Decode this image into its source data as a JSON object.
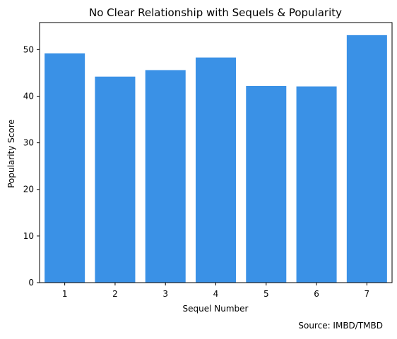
{
  "chart_data": {
    "type": "bar",
    "title": "No Clear Relationship with Sequels & Popularity",
    "xlabel": "Sequel Number",
    "ylabel": "Popularity Score",
    "categories": [
      "1",
      "2",
      "3",
      "4",
      "5",
      "6",
      "7"
    ],
    "values": [
      49.2,
      44.2,
      45.6,
      48.3,
      42.2,
      42.1,
      53.1
    ],
    "ylim": [
      0,
      55.8
    ],
    "yticks": [
      0,
      10,
      20,
      30,
      40,
      50
    ],
    "grid": false,
    "bar_color": "#3a91e6",
    "source_note": "Source: IMBD/TMBD"
  }
}
